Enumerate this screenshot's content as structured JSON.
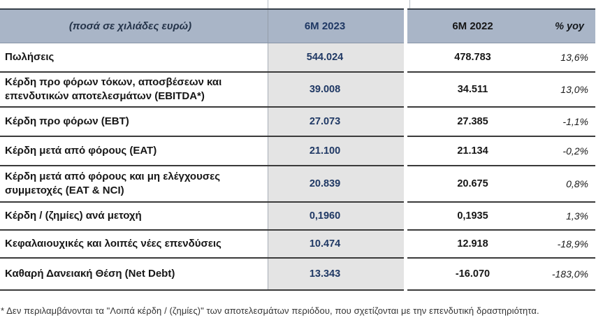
{
  "table": {
    "unit_label": "(ποσά σε χιλιάδες ευρώ)",
    "columns": {
      "col_2023": "6M 2023",
      "col_2022": "6M 2022",
      "col_yoy": "% yoy"
    },
    "rows": [
      {
        "label": "Πωλήσεις",
        "v2023": "544.024",
        "v2022": "478.783",
        "yoy": "13,6%"
      },
      {
        "label": "Κέρδη προ φόρων τόκων, αποσβέσεων και επενδυτικών αποτελεσμάτων (EBITDA*)",
        "v2023": "39.008",
        "v2022": "34.511",
        "yoy": "13,0%"
      },
      {
        "label": "Κέρδη προ φόρων (EBT)",
        "v2023": "27.073",
        "v2022": "27.385",
        "yoy": "-1,1%"
      },
      {
        "label": "Κέρδη μετά από φόρους (EAT)",
        "v2023": "21.100",
        "v2022": "21.134",
        "yoy": "-0,2%"
      },
      {
        "label": "Κέρδη μετά από φόρους και μη ελέγχουσες συμμετοχές (EAT & NCI)",
        "v2023": "20.839",
        "v2022": "20.675",
        "yoy": "0,8%"
      },
      {
        "label": "Κέρδη / (ζημίες) ανά μετοχή",
        "v2023": "0,1960",
        "v2022": "0,1935",
        "yoy": "1,3%"
      },
      {
        "label": "Κεφαλαιουχικές και λοιπές νέες επενδύσεις",
        "v2023": "10.474",
        "v2022": "12.918",
        "yoy": "-18,9%"
      },
      {
        "label": "Καθαρή Δανειακή Θέση (Net Debt)",
        "v2023": "13.343",
        "v2022": "-16.070",
        "yoy": "-183,0%"
      }
    ]
  },
  "footnote": "* Δεν περιλαμβάνονται τα \"Λοιπά κέρδη / (ζημίες)\" των αποτελεσμάτων περιόδου, που σχετίζονται με την επενδυτική δραστηριότητα.",
  "colors": {
    "header_bg": "#a9b5c7",
    "highlight_column_bg": "#e4e4e4",
    "accent_navy": "#1f3864",
    "divider_dark": "#3a3a3a"
  }
}
